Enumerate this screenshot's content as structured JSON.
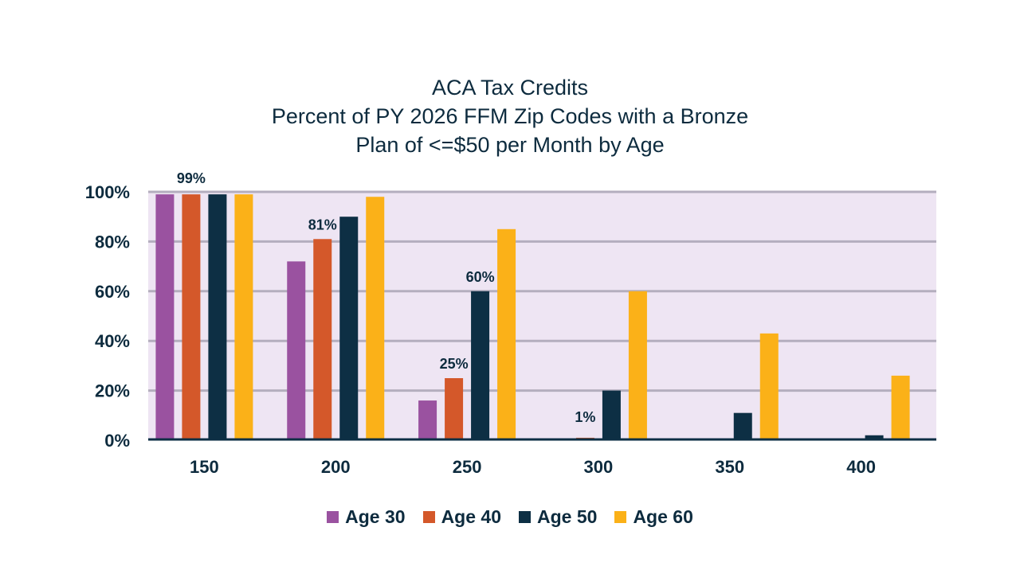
{
  "chart_data": {
    "type": "bar",
    "title": [
      "ACA Tax Credits",
      "Percent of PY 2026 FFM Zip Codes with a Bronze",
      "Plan of <=$50 per Month by Age"
    ],
    "xlabel": "",
    "ylabel": "",
    "categories": [
      "150",
      "200",
      "250",
      "300",
      "350",
      "400"
    ],
    "ylim": [
      0,
      100
    ],
    "yticks": [
      0,
      20,
      40,
      60,
      80,
      100
    ],
    "ytick_labels": [
      "0%",
      "20%",
      "40%",
      "60%",
      "80%",
      "100%"
    ],
    "grid": true,
    "legend_position": "bottom",
    "series": [
      {
        "name": "Age 30",
        "color": "#9a52a0",
        "values": [
          99,
          72,
          16,
          0,
          0,
          0
        ]
      },
      {
        "name": "Age 40",
        "color": "#d4582a",
        "values": [
          99,
          81,
          25,
          1,
          0,
          0
        ]
      },
      {
        "name": "Age 50",
        "color": "#0d2f44",
        "values": [
          99,
          90,
          60,
          20,
          11,
          2
        ]
      },
      {
        "name": "Age 60",
        "color": "#fbb118",
        "values": [
          99,
          98,
          85,
          60,
          43,
          26
        ]
      }
    ],
    "annotations": [
      {
        "text": "99%",
        "category": "150",
        "series": "Age 40"
      },
      {
        "text": "81%",
        "category": "200",
        "series": "Age 40"
      },
      {
        "text": "25%",
        "category": "250",
        "series": "Age 40"
      },
      {
        "text": "60%",
        "category": "250",
        "series": "Age 50"
      },
      {
        "text": "1%",
        "category": "300",
        "series": "Age 40"
      }
    ],
    "plot_background": "#eee5f3",
    "grid_color": "#b4aebe"
  }
}
